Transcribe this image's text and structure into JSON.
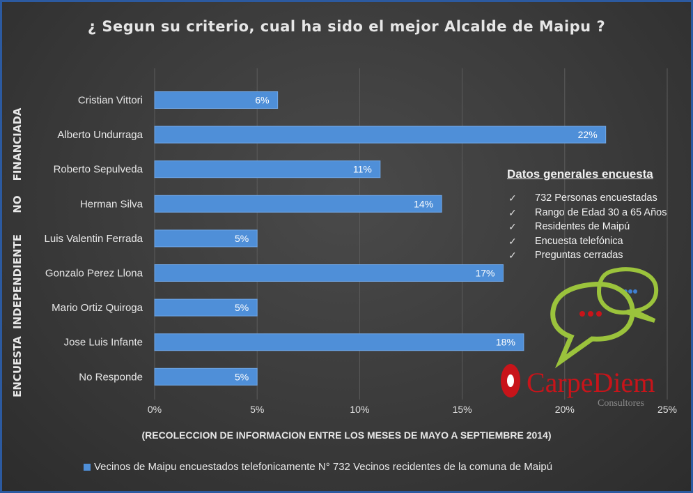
{
  "title": "¿ Segun su criterio, cual  ha sido el mejor Alcalde de Maipu ?",
  "xlabel": "(RECOLECCION DE INFORMACION ENTRE LOS MESES DE MAYO  A SEPTIEMBRE 2014)",
  "legend": {
    "label": "Vecinos de Maipu encuestados telefonicamente N° 732 Vecinos recidentes de la comuna de Maipú",
    "color": "#4f8fd8"
  },
  "vertical_group_labels": [
    "ENCUESTA",
    "INDEPENDIENTE",
    "NO",
    "FINANCIADA"
  ],
  "info_box": {
    "title": "Datos generales encuesta",
    "items": [
      "732 Personas encuestadas",
      "Rango de Edad 30 a 65 Años",
      "Residentes  de Maipú",
      "Encuesta telefónica",
      "Preguntas cerradas"
    ]
  },
  "logo": {
    "text": "CarpeDiem",
    "subtext": "Consultores"
  },
  "colors": {
    "bar": "#4f8fd8",
    "bar_edge": "#6fa6e6",
    "background": "#3a3a3a",
    "logo_red": "#c8141a",
    "bubble_green": "#9bc33c"
  },
  "chart_data": {
    "type": "bar",
    "orientation": "horizontal",
    "categories": [
      "Cristian Vittori",
      "Alberto Undurraga",
      "Roberto Sepulveda",
      "Herman Silva",
      "Luis Valentin Ferrada",
      "Gonzalo Perez Llona",
      "Mario Ortiz Quiroga",
      "Jose Luis Infante",
      "No Responde"
    ],
    "values": [
      6,
      22,
      11,
      14,
      5,
      17,
      5,
      18,
      5
    ],
    "value_labels": [
      "6%",
      "22%",
      "11%",
      "14%",
      "5%",
      "17%",
      "5%",
      "18%",
      "5%"
    ],
    "xlim": [
      0,
      25
    ],
    "xticks": [
      "0%",
      "5%",
      "10%",
      "15%",
      "20%",
      "25%"
    ],
    "grid": true
  }
}
